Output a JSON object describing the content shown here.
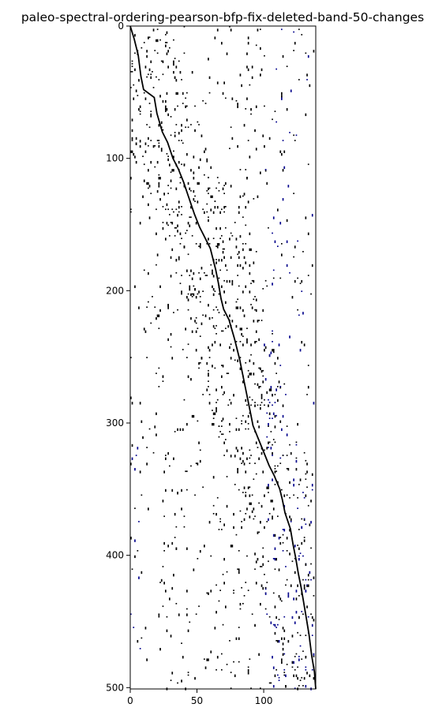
{
  "chart_data": {
    "type": "heatmap",
    "title": "paleo-spectral-ordering-pearson-bfp-fix-deleted-band-50-changes",
    "xlabel": "",
    "ylabel": "",
    "xlim": [
      0,
      139
    ],
    "ylim": [
      0,
      501
    ],
    "y_inverted": true,
    "grid": false,
    "x_ticks": [
      0,
      50,
      100
    ],
    "y_ticks": [
      0,
      100,
      200,
      300,
      400,
      500
    ],
    "colors": {
      "primary": "#000000",
      "secondary": "#00008b",
      "background": "#ffffff"
    },
    "diagonal": [
      [
        0,
        0
      ],
      [
        3,
        10
      ],
      [
        6,
        22
      ],
      [
        8,
        38
      ],
      [
        10,
        48
      ],
      [
        18,
        54
      ],
      [
        20,
        66
      ],
      [
        24,
        80
      ],
      [
        28,
        88
      ],
      [
        32,
        100
      ],
      [
        36,
        108
      ],
      [
        40,
        118
      ],
      [
        44,
        130
      ],
      [
        48,
        142
      ],
      [
        52,
        152
      ],
      [
        56,
        160
      ],
      [
        60,
        168
      ],
      [
        62,
        176
      ],
      [
        64,
        184
      ],
      [
        66,
        194
      ],
      [
        68,
        206
      ],
      [
        70,
        214
      ],
      [
        74,
        222
      ],
      [
        78,
        236
      ],
      [
        80,
        244
      ],
      [
        82,
        252
      ],
      [
        84,
        262
      ],
      [
        86,
        272
      ],
      [
        88,
        282
      ],
      [
        90,
        292
      ],
      [
        92,
        302
      ],
      [
        96,
        312
      ],
      [
        100,
        322
      ],
      [
        104,
        332
      ],
      [
        108,
        340
      ],
      [
        112,
        350
      ],
      [
        114,
        358
      ],
      [
        116,
        368
      ],
      [
        120,
        380
      ],
      [
        122,
        392
      ],
      [
        124,
        402
      ],
      [
        126,
        414
      ],
      [
        128,
        424
      ],
      [
        130,
        436
      ],
      [
        132,
        448
      ],
      [
        134,
        460
      ],
      [
        136,
        476
      ],
      [
        138,
        488
      ],
      [
        139,
        501
      ]
    ]
  }
}
